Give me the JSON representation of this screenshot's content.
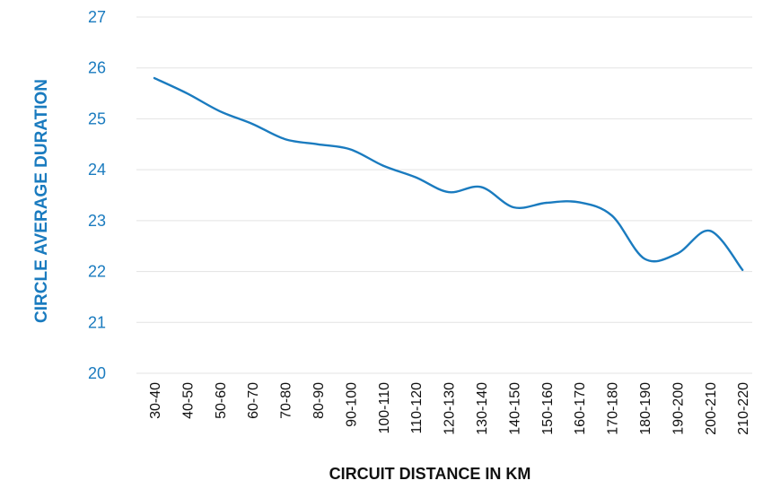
{
  "chart_data": {
    "type": "line",
    "title": "",
    "xlabel": "CIRCUIT DISTANCE IN KM",
    "ylabel": "CIRCLE AVERAGE DURATION",
    "ylim": [
      20,
      27
    ],
    "yticks": [
      "20",
      "21",
      "22",
      "23",
      "24",
      "25",
      "26",
      "27"
    ],
    "grid": true,
    "categories": [
      "30-40",
      "40-50",
      "50-60",
      "60-70",
      "70-80",
      "80-90",
      "90-100",
      "100-110",
      "110-120",
      "120-130",
      "130-140",
      "140-150",
      "150-160",
      "160-170",
      "170-180",
      "180-190",
      "190-200",
      "200-210",
      "210-220"
    ],
    "series": [
      {
        "color": "#1a7bbf",
        "values": [
          25.8,
          25.5,
          25.15,
          24.9,
          24.6,
          24.5,
          24.4,
          24.08,
          23.85,
          23.56,
          23.66,
          23.26,
          23.35,
          23.36,
          23.1,
          22.25,
          22.35,
          22.8,
          22.03
        ]
      }
    ],
    "colors": {
      "accent": "#1a7bbf",
      "grid": "#e3e3e3",
      "text": "#111111"
    }
  }
}
